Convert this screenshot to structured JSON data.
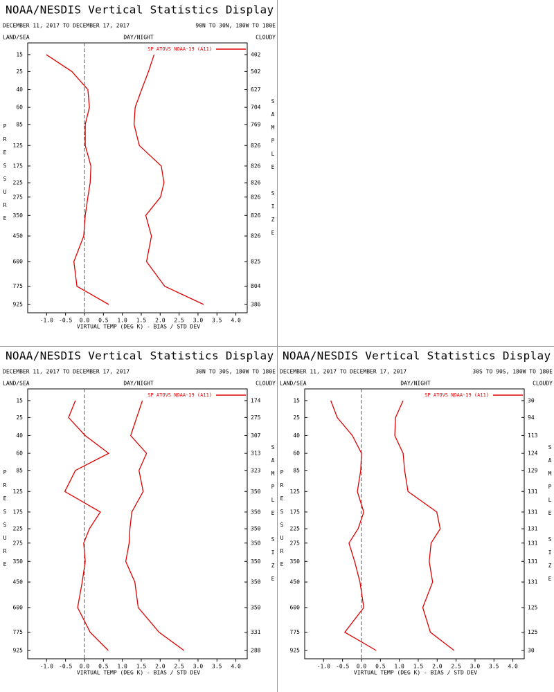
{
  "chart_data": [
    {
      "type": "line",
      "title": "NOAA/NESDIS Vertical Statistics Display",
      "subtitle": "DECEMBER 11, 2017 TO DECEMBER 17, 2017",
      "region": "90N TO 30N, 180W TO 180E",
      "left_label": "LAND/SEA",
      "center_label": "DAY/NIGHT",
      "right_label": "CLOUDY",
      "y_label": "PRESSURE",
      "y2_label": "SAMPLE SIZE",
      "x_label": "VIRTUAL TEMP (DEG K) - BIAS / STD DEV",
      "y": [
        15,
        25,
        40,
        60,
        85,
        125,
        175,
        225,
        275,
        350,
        450,
        600,
        775,
        925
      ],
      "sample_sizes": [
        402,
        502,
        627,
        704,
        769,
        826,
        826,
        826,
        826,
        826,
        826,
        825,
        804,
        386
      ],
      "series": [
        {
          "name": "SP ATOVS NOAA-19 (A11)",
          "color": "#dd0000",
          "bias": [
            -1.01,
            -0.33,
            0.09,
            0.13,
            0.02,
            0.02,
            0.17,
            0.15,
            0.09,
            0.02,
            -0.02,
            -0.28,
            -0.2,
            0.64
          ],
          "std_dev": [
            1.84,
            1.69,
            1.51,
            1.34,
            1.31,
            1.45,
            2.03,
            2.1,
            2.01,
            1.62,
            1.77,
            1.64,
            2.12,
            3.15
          ]
        }
      ],
      "xlim": [
        -1.5,
        4.3
      ],
      "xticks": [
        {
          "value": -1,
          "label": "-1.0"
        },
        -0.5,
        {
          "value": 0,
          "label": "0.0"
        },
        0.5,
        {
          "value": 1,
          "label": "1.0"
        },
        1.5,
        {
          "value": 2,
          "label": "2.0"
        },
        2.5,
        {
          "value": 3,
          "label": "3.0"
        },
        3.5,
        {
          "value": 4,
          "label": "4.0"
        }
      ],
      "ylim": [
        10,
        1000
      ],
      "y_inverted": true,
      "y_scale": "power",
      "y_exponent": 0.3,
      "zero_line": true
    },
    {
      "type": "line",
      "title": "NOAA/NESDIS Vertical Statistics Display",
      "subtitle": "DECEMBER 11, 2017 TO DECEMBER 17, 2017",
      "region": "30N TO 30S, 180W TO 180E",
      "left_label": "LAND/SEA",
      "center_label": "DAY/NIGHT",
      "right_label": "CLOUDY",
      "y_label": "PRESSURE",
      "y2_label": "SAMPLE SIZE",
      "x_label": "VIRTUAL TEMP (DEG K) - BIAS / STD DEV",
      "y": [
        15,
        25,
        40,
        60,
        85,
        125,
        175,
        225,
        275,
        350,
        450,
        600,
        775,
        925
      ],
      "sample_sizes": [
        174,
        275,
        307,
        313,
        323,
        350,
        350,
        350,
        350,
        350,
        350,
        350,
        331,
        288
      ],
      "series": [
        {
          "name": "SP ATOVS NOAA-19 (A11)",
          "color": "#dd0000",
          "bias": [
            -0.24,
            -0.42,
            0.02,
            0.64,
            -0.24,
            -0.52,
            0.42,
            0.13,
            -0.02,
            0.02,
            -0.06,
            -0.18,
            0.15,
            0.63
          ],
          "std_dev": [
            1.53,
            1.38,
            1.22,
            1.64,
            1.44,
            1.55,
            1.25,
            1.2,
            1.18,
            1.09,
            1.33,
            1.42,
            1.97,
            2.63
          ]
        }
      ],
      "xlim": [
        -1.5,
        4.3
      ],
      "xticks": [
        {
          "value": -1,
          "label": "-1.0"
        },
        -0.5,
        {
          "value": 0,
          "label": "0.0"
        },
        0.5,
        {
          "value": 1,
          "label": "1.0"
        },
        1.5,
        {
          "value": 2,
          "label": "2.0"
        },
        2.5,
        {
          "value": 3,
          "label": "3.0"
        },
        3.5,
        {
          "value": 4,
          "label": "4.0"
        }
      ],
      "ylim": [
        10,
        1000
      ],
      "y_inverted": true,
      "y_scale": "power",
      "y_exponent": 0.3,
      "zero_line": true
    },
    {
      "type": "line",
      "title": "NOAA/NESDIS Vertical Statistics Display",
      "subtitle": "DECEMBER 11, 2017 TO DECEMBER 17, 2017",
      "region": "30S TO 90S, 180W TO 180E",
      "left_label": "LAND/SEA",
      "center_label": "DAY/NIGHT",
      "right_label": "CLOUDY",
      "y_label": "PRESSURE",
      "y2_label": "SAMPLE SIZE",
      "x_label": "VIRTUAL TEMP (DEG K) - BIAS / STD DEV",
      "y": [
        15,
        25,
        40,
        60,
        85,
        125,
        175,
        225,
        275,
        350,
        450,
        600,
        775,
        925
      ],
      "sample_sizes": [
        30,
        94,
        113,
        124,
        129,
        131,
        131,
        131,
        131,
        131,
        131,
        125,
        125,
        30
      ],
      "series": [
        {
          "name": "SP ATOVS NOAA-19 (A11)",
          "color": "#dd0000",
          "bias": [
            -0.81,
            -0.64,
            -0.24,
            0.0,
            -0.02,
            -0.11,
            0.06,
            -0.09,
            -0.33,
            -0.18,
            -0.04,
            0.06,
            -0.44,
            0.39
          ],
          "std_dev": [
            1.1,
            0.9,
            0.88,
            1.1,
            1.14,
            1.23,
            1.99,
            2.08,
            1.84,
            1.79,
            1.88,
            1.62,
            1.82,
            2.45
          ]
        }
      ],
      "xlim": [
        -1.5,
        4.3
      ],
      "xticks": [
        {
          "value": -1,
          "label": "-1.0"
        },
        -0.5,
        {
          "value": 0,
          "label": "0.0"
        },
        0.5,
        {
          "value": 1,
          "label": "1.0"
        },
        1.5,
        {
          "value": 2,
          "label": "2.0"
        },
        2.5,
        {
          "value": 3,
          "label": "3.0"
        },
        3.5,
        {
          "value": 4,
          "label": "4.0"
        }
      ],
      "ylim": [
        10,
        1000
      ],
      "y_inverted": true,
      "y_scale": "power",
      "y_exponent": 0.3,
      "zero_line": true
    }
  ]
}
